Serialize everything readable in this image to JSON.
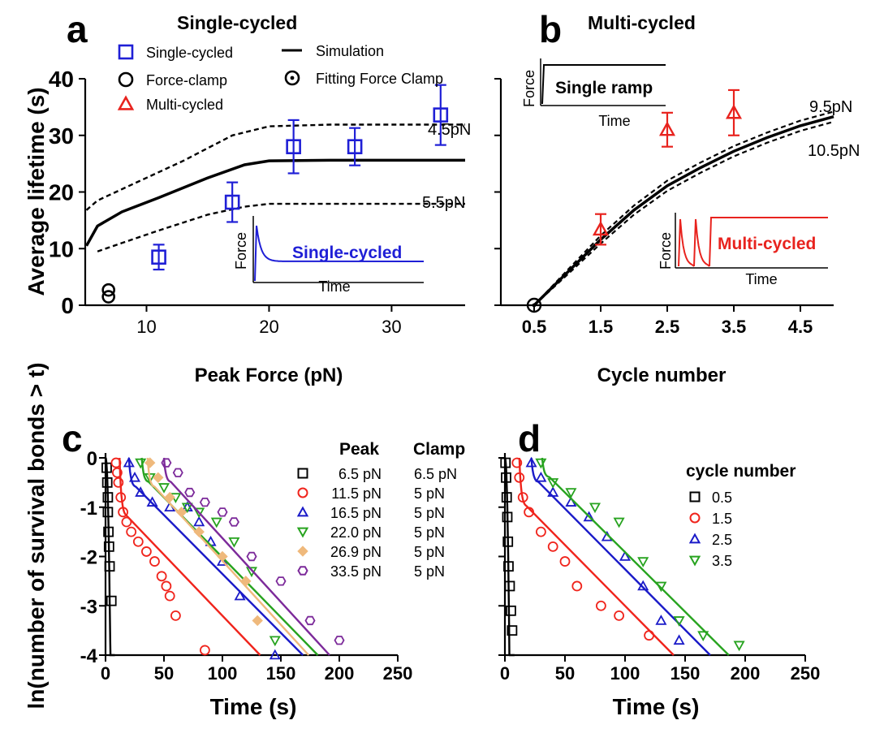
{
  "chart_data": [
    {
      "panel": "a",
      "type": "scatter",
      "title": "Single-cycled",
      "xlabel": "Peak Force (pN)",
      "ylabel": "Average lifetime (s)",
      "xlim": [
        5,
        36
      ],
      "ylim": [
        0,
        40
      ],
      "xticks": [
        "10",
        "20",
        "30"
      ],
      "yticks": [
        "0",
        "10",
        "20",
        "30",
        "40"
      ],
      "legend": [
        {
          "label": "Single-cycled",
          "marker": "square",
          "color": "#1f1fd6"
        },
        {
          "label": "Force-clamp",
          "marker": "circle",
          "color": "#000000"
        },
        {
          "label": "Multi-cycled",
          "marker": "triangle",
          "color": "#e8231e"
        },
        {
          "label": "Simulation",
          "marker": "line",
          "color": "#000000"
        },
        {
          "label": "Fitting Force Clamp",
          "marker": "circle-dot",
          "color": "#000000"
        }
      ],
      "series": [
        {
          "name": "Single-cycled",
          "color": "#1f1fd6",
          "marker": "square",
          "points": [
            {
              "x": 11,
              "y": 8.5,
              "err": 2.2
            },
            {
              "x": 17,
              "y": 18.2,
              "err": 3.5
            },
            {
              "x": 22,
              "y": 28,
              "err": 4.7
            },
            {
              "x": 27,
              "y": 28,
              "err": 3.3
            },
            {
              "x": 34,
              "y": 33.6,
              "err": 5.3
            }
          ]
        },
        {
          "name": "Force-clamp",
          "color": "#000000",
          "marker": "circle",
          "points": [
            {
              "x": 6.9,
              "y": 2.7
            },
            {
              "x": 6.9,
              "y": 1.5
            }
          ]
        }
      ],
      "curves": [
        {
          "name": "Simulation",
          "style": "solid",
          "points": [
            [
              5.1,
              10.5
            ],
            [
              6,
              14
            ],
            [
              8,
              16.5
            ],
            [
              11,
              19
            ],
            [
              15,
              22.5
            ],
            [
              18,
              24.8
            ],
            [
              20,
              25.5
            ],
            [
              25,
              25.6
            ],
            [
              36,
              25.6
            ]
          ]
        },
        {
          "label": "4.5pN",
          "style": "dashed",
          "points": [
            [
              5.1,
              16.8
            ],
            [
              6,
              18.5
            ],
            [
              9,
              21.5
            ],
            [
              13,
              25.5
            ],
            [
              17,
              30
            ],
            [
              20,
              31.6
            ],
            [
              25,
              31.9
            ],
            [
              36,
              31.9
            ]
          ]
        },
        {
          "label": "5.5pN",
          "style": "dashed",
          "points": [
            [
              6,
              9.5
            ],
            [
              8,
              11
            ],
            [
              11,
              13.2
            ],
            [
              15,
              16
            ],
            [
              18,
              17.4
            ],
            [
              20,
              17.9
            ],
            [
              36,
              17.9
            ]
          ]
        }
      ],
      "curve_labels": [
        "4.5pN",
        "5.5pN"
      ],
      "inset": {
        "label": "Single-cycled",
        "xlabel": "Time",
        "ylabel": "Force",
        "color": "#1f1fd6"
      }
    },
    {
      "panel": "b",
      "type": "line",
      "title": "Multi-cycled",
      "xlabel": "Cycle number",
      "xlim": [
        0,
        5
      ],
      "ylim": [
        0,
        40
      ],
      "xticks": [
        "0.5",
        "1.5",
        "2.5",
        "3.5",
        "4.5"
      ],
      "series": [
        {
          "name": "Multi-cycled",
          "color": "#e8231e",
          "marker": "triangle",
          "points": [
            {
              "x": 1.5,
              "y": 13.4,
              "err": 2.7
            },
            {
              "x": 2.5,
              "y": 31,
              "err": 3
            },
            {
              "x": 3.5,
              "y": 34,
              "err": 4
            }
          ]
        },
        {
          "name": "Force-clamp",
          "marker": "circle-dot",
          "points": [
            {
              "x": 0.5,
              "y": 0
            }
          ]
        }
      ],
      "curves": [
        {
          "style": "solid",
          "points": [
            [
              0.5,
              0
            ],
            [
              1,
              5.8
            ],
            [
              1.5,
              11.6
            ],
            [
              2,
              16.8
            ],
            [
              2.5,
              21.1
            ],
            [
              3,
              24.3
            ],
            [
              3.5,
              27.2
            ],
            [
              4,
              29.6
            ],
            [
              4.5,
              31.7
            ],
            [
              5,
              33.3
            ]
          ]
        },
        {
          "label": "9.5pN",
          "style": "dashed",
          "points": [
            [
              0.5,
              0
            ],
            [
              1,
              6.2
            ],
            [
              1.5,
              12.3
            ],
            [
              2,
              17.6
            ],
            [
              2.5,
              22
            ],
            [
              3,
              25.2
            ],
            [
              3.5,
              28.1
            ],
            [
              4,
              30.5
            ],
            [
              4.5,
              32.6
            ],
            [
              5,
              34.2
            ]
          ]
        },
        {
          "label": "10.5pN",
          "style": "dashed",
          "points": [
            [
              0.5,
              0
            ],
            [
              1,
              5.4
            ],
            [
              1.5,
              10.9
            ],
            [
              2,
              16
            ],
            [
              2.5,
              20.2
            ],
            [
              3,
              23.4
            ],
            [
              3.5,
              26.3
            ],
            [
              4,
              28.7
            ],
            [
              4.5,
              30.8
            ],
            [
              5,
              32.4
            ]
          ]
        }
      ],
      "curve_labels": [
        "9.5pN",
        "10.5pN"
      ],
      "inset_top": {
        "label": "Single ramp",
        "xlabel": "Time",
        "ylabel": "Force"
      },
      "inset_bottom": {
        "label": "Multi-cycled",
        "xlabel": "Time",
        "ylabel": "Force",
        "color": "#e8231e"
      }
    },
    {
      "panel": "c",
      "type": "scatter",
      "xlabel": "Time (s)",
      "ylabel": "ln(number of survival bonds > t)",
      "xlim": [
        0,
        250
      ],
      "ylim": [
        -4,
        0
      ],
      "xticks": [
        "0",
        "50",
        "100",
        "150",
        "200",
        "250"
      ],
      "yticks": [
        "0",
        "-1",
        "-2",
        "-3",
        "-4"
      ],
      "legend_header": {
        "peak": "Peak",
        "clamp": "Clamp"
      },
      "series": [
        {
          "peak": "6.5 pN",
          "clamp": "6.5 pN",
          "color": "#000000",
          "marker": "square",
          "t0": 0,
          "slope": 0,
          "decay": 2.2,
          "lambda": 1.0,
          "pts": [
            [
              1,
              -0.2
            ],
            [
              1.5,
              -0.5
            ],
            [
              2,
              -0.8
            ],
            [
              2,
              -1.1
            ],
            [
              2.5,
              -1.5
            ],
            [
              3,
              -1.8
            ],
            [
              3.5,
              -2.2
            ],
            [
              5,
              -2.9
            ]
          ]
        },
        {
          "peak": "11.5 pN",
          "clamp": "5 pN",
          "color": "#f0241c",
          "marker": "circle",
          "t0": 12,
          "slope": 0.0245,
          "drop": 1.2,
          "pts": [
            [
              9,
              -0.1
            ],
            [
              10,
              -0.3
            ],
            [
              11,
              -0.5
            ],
            [
              13,
              -0.8
            ],
            [
              15,
              -1.1
            ],
            [
              18,
              -1.3
            ],
            [
              22,
              -1.5
            ],
            [
              28,
              -1.7
            ],
            [
              35,
              -1.9
            ],
            [
              42,
              -2.1
            ],
            [
              48,
              -2.4
            ],
            [
              52,
              -2.6
            ],
            [
              55,
              -2.8
            ],
            [
              60,
              -3.2
            ],
            [
              85,
              -3.9
            ]
          ]
        },
        {
          "peak": "16.5 pN",
          "clamp": "5 pN",
          "color": "#1a1ac8",
          "marker": "triangle",
          "t0": 20,
          "slope": 0.0238,
          "drop": 0.6,
          "pts": [
            [
              20,
              -0.1
            ],
            [
              25,
              -0.4
            ],
            [
              30,
              -0.7
            ],
            [
              40,
              -0.9
            ],
            [
              55,
              -1.0
            ],
            [
              70,
              -1.0
            ],
            [
              80,
              -1.3
            ],
            [
              90,
              -1.7
            ],
            [
              100,
              -2.1
            ],
            [
              115,
              -2.8
            ],
            [
              145,
              -4.0
            ]
          ]
        },
        {
          "peak": "22.0 pN",
          "clamp": "5 pN",
          "color": "#27a31f",
          "marker": "triangle-down",
          "t0": 31,
          "slope": 0.0242,
          "drop": 0.5,
          "pts": [
            [
              30,
              -0.1
            ],
            [
              38,
              -0.4
            ],
            [
              50,
              -0.6
            ],
            [
              60,
              -0.8
            ],
            [
              70,
              -1.0
            ],
            [
              80,
              -1.1
            ],
            [
              95,
              -1.3
            ],
            [
              110,
              -1.7
            ],
            [
              125,
              -2.3
            ],
            [
              145,
              -3.7
            ]
          ]
        },
        {
          "peak": "26.9 pN",
          "clamp": "5 pN",
          "color": "#efb97c",
          "marker": "diamond",
          "t0": 36,
          "slope": 0.0258,
          "drop": 0.6,
          "pts": [
            [
              38,
              -0.1
            ],
            [
              45,
              -0.4
            ],
            [
              55,
              -0.8
            ],
            [
              65,
              -1.1
            ],
            [
              80,
              -1.5
            ],
            [
              100,
              -2.0
            ],
            [
              120,
              -2.5
            ],
            [
              130,
              -3.3
            ]
          ]
        },
        {
          "peak": "33.5 pN",
          "clamp": "5 pN",
          "color": "#7c2a9a",
          "marker": "hexagon",
          "t0": 50,
          "slope": 0.0258,
          "drop": 0.5,
          "pts": [
            [
              52,
              -0.1
            ],
            [
              62,
              -0.3
            ],
            [
              72,
              -0.7
            ],
            [
              85,
              -0.9
            ],
            [
              100,
              -1.1
            ],
            [
              110,
              -1.3
            ],
            [
              125,
              -2.0
            ],
            [
              150,
              -2.5
            ],
            [
              175,
              -3.3
            ],
            [
              200,
              -3.7
            ]
          ]
        }
      ]
    },
    {
      "panel": "d",
      "type": "scatter",
      "xlabel": "Time (s)",
      "xlim": [
        0,
        250
      ],
      "ylim": [
        -4,
        0
      ],
      "xticks": [
        "0",
        "50",
        "100",
        "150",
        "200",
        "250"
      ],
      "legend_title": "cycle number",
      "series": [
        {
          "name": "0.5",
          "color": "#000000",
          "marker": "square",
          "t0": 0,
          "decay": 2.0,
          "lambda": 1.0,
          "pts": [
            [
              0.5,
              -0.1
            ],
            [
              1,
              -0.4
            ],
            [
              1.5,
              -0.8
            ],
            [
              2,
              -1.2
            ],
            [
              2.5,
              -1.7
            ],
            [
              3,
              -2.2
            ],
            [
              4,
              -2.6
            ],
            [
              5,
              -3.1
            ],
            [
              6,
              -3.5
            ]
          ]
        },
        {
          "name": "1.5",
          "color": "#f0241c",
          "marker": "circle",
          "t0": 12,
          "slope": 0.0245,
          "drop": 1.0,
          "pts": [
            [
              10,
              -0.1
            ],
            [
              12,
              -0.4
            ],
            [
              15,
              -0.8
            ],
            [
              20,
              -1.1
            ],
            [
              30,
              -1.5
            ],
            [
              40,
              -1.8
            ],
            [
              50,
              -2.1
            ],
            [
              60,
              -2.6
            ],
            [
              80,
              -3.0
            ],
            [
              95,
              -3.2
            ],
            [
              120,
              -3.6
            ]
          ]
        },
        {
          "name": "2.5",
          "color": "#1a1ac8",
          "marker": "triangle",
          "t0": 22,
          "slope": 0.0245,
          "drop": 0.5,
          "pts": [
            [
              22,
              -0.1
            ],
            [
              30,
              -0.4
            ],
            [
              40,
              -0.7
            ],
            [
              55,
              -0.9
            ],
            [
              70,
              -1.2
            ],
            [
              85,
              -1.6
            ],
            [
              100,
              -2.0
            ],
            [
              115,
              -2.6
            ],
            [
              130,
              -3.3
            ],
            [
              145,
              -3.7
            ]
          ]
        },
        {
          "name": "3.5",
          "color": "#27a31f",
          "marker": "triangle-down",
          "t0": 31,
          "slope": 0.0241,
          "drop": 0.4,
          "pts": [
            [
              30,
              -0.1
            ],
            [
              40,
              -0.5
            ],
            [
              55,
              -0.7
            ],
            [
              75,
              -1.0
            ],
            [
              95,
              -1.3
            ],
            [
              115,
              -2.1
            ],
            [
              130,
              -2.6
            ],
            [
              145,
              -3.3
            ],
            [
              165,
              -3.6
            ],
            [
              195,
              -3.8
            ]
          ]
        }
      ]
    }
  ],
  "panel_letters": [
    "a",
    "b",
    "c",
    "d"
  ]
}
